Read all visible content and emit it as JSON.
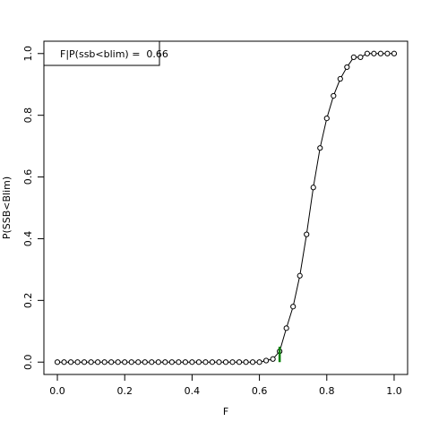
{
  "chart_data": {
    "type": "line",
    "legend_text": "F|P(ssb<blim) =  0.66",
    "x_label": "F",
    "y_label": "P(SSB<Blim)",
    "x": [
      0,
      0.02,
      0.04,
      0.06,
      0.08,
      0.1,
      0.12,
      0.14,
      0.16,
      0.18,
      0.2,
      0.22,
      0.24,
      0.26,
      0.28,
      0.3,
      0.32,
      0.34,
      0.36,
      0.38,
      0.4,
      0.42,
      0.44,
      0.46,
      0.48,
      0.5,
      0.52,
      0.54,
      0.56,
      0.58,
      0.6,
      0.62,
      0.64,
      0.66,
      0.68,
      0.7,
      0.72,
      0.74,
      0.76,
      0.78,
      0.8,
      0.82,
      0.84,
      0.86,
      0.88,
      0.9,
      0.92,
      0.94,
      0.96,
      0.98,
      1
    ],
    "values": [
      0,
      0,
      0,
      0,
      0,
      0,
      0,
      0,
      0,
      0,
      0,
      0,
      0,
      0,
      0,
      0,
      0,
      0,
      0,
      0,
      0,
      0,
      0,
      0,
      0,
      0,
      0,
      0,
      0,
      0,
      0,
      0.005,
      0.01,
      0.035,
      0.11,
      0.18,
      0.28,
      0.414,
      0.566,
      0.694,
      0.79,
      0.863,
      0.918,
      0.956,
      0.988,
      0.988,
      1,
      1,
      1,
      1,
      1
    ],
    "color": "#000000",
    "threshold": {
      "x": 0.66,
      "y": [
        0,
        0.05
      ],
      "color": "#008000"
    },
    "xlim": [
      -0.04,
      1.04
    ],
    "ylim": [
      -0.04,
      1.04
    ],
    "xticks": [
      {
        "value": 0,
        "label": "0.0"
      },
      0.2,
      0.4,
      0.6,
      0.8,
      {
        "value": 1,
        "label": "1.0"
      }
    ],
    "yticks": [
      {
        "value": 0,
        "label": "0.0"
      },
      0.2,
      0.4,
      0.6,
      0.8,
      {
        "value": 1,
        "label": "1.0"
      }
    ]
  }
}
